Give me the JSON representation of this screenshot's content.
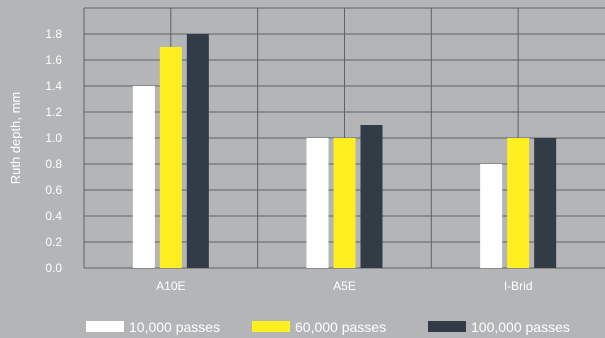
{
  "chart_data": {
    "type": "bar",
    "ylabel": "Ruth  depth, mm",
    "xlabel": "",
    "ylim": [
      0,
      2.0
    ],
    "yticks": [
      "0.0",
      "0.2",
      "0.4",
      "0.6",
      "0.8",
      "1.0",
      "1.2",
      "1.4",
      "1.6",
      "1.8"
    ],
    "grid": true,
    "legend_position": "bottom",
    "categories": [
      "A10E",
      "A5E",
      "I-Brid"
    ],
    "series": [
      {
        "name": "10,000 passes",
        "color": "#ffffff",
        "values": [
          1.4,
          1.0,
          0.8
        ]
      },
      {
        "name": "60,000 passes",
        "color": "#ffef1f",
        "values": [
          1.7,
          1.0,
          1.0
        ]
      },
      {
        "name": "100,000 passes",
        "color": "#323c46",
        "values": [
          1.8,
          1.1,
          1.0
        ]
      }
    ]
  }
}
